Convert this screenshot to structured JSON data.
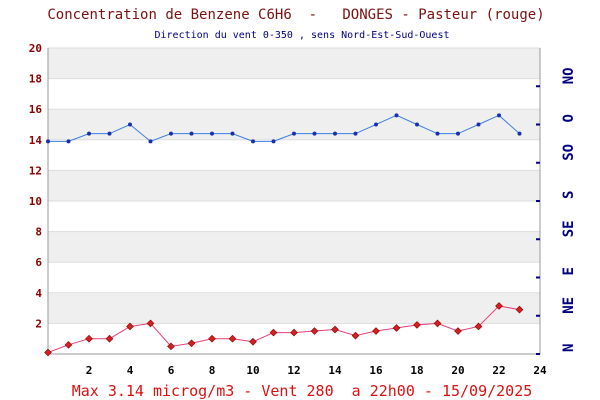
{
  "chart_data": {
    "type": "line",
    "title": "Concentration de Benzene C6H6  -   DONGES - Pasteur (rouge)",
    "subtitle": "Direction du vent 0-350 , sens Nord-Est-Sud-Ouest",
    "footer": "Max 3.14 microg/m3 - Vent 280  a 22h00 - 15/09/2025",
    "xlim": [
      0,
      24
    ],
    "ylim": [
      0,
      20
    ],
    "x_ticks": [
      "2",
      "4",
      "6",
      "8",
      "10",
      "12",
      "14",
      "16",
      "18",
      "20",
      "22",
      "24"
    ],
    "y_ticks": [
      "2",
      "4",
      "6",
      "8",
      "10",
      "12",
      "14",
      "16",
      "18",
      "20"
    ],
    "right_axis_labels": [
      "N",
      "NE",
      "E",
      "SE",
      "S",
      "SO",
      "O",
      "NO"
    ],
    "grid": true,
    "series": [
      {
        "role": "wind_direction",
        "color": "#3a7ee0",
        "marker_color": "#1a2fb0",
        "x": [
          0,
          1,
          2,
          3,
          4,
          5,
          6,
          7,
          8,
          9,
          10,
          11,
          12,
          13,
          14,
          15,
          16,
          17,
          18,
          19,
          20,
          21,
          22,
          23
        ],
        "values": [
          13.9,
          13.9,
          14.4,
          14.4,
          15.0,
          13.9,
          14.4,
          14.4,
          14.4,
          14.4,
          13.9,
          13.9,
          14.4,
          14.4,
          14.4,
          14.4,
          15.0,
          15.6,
          15.0,
          14.4,
          14.4,
          15.0,
          15.6,
          14.4
        ]
      },
      {
        "role": "benzene",
        "color": "#e0407a",
        "marker_color": "#d42020",
        "x": [
          0,
          1,
          2,
          3,
          4,
          5,
          6,
          7,
          8,
          9,
          10,
          11,
          12,
          13,
          14,
          15,
          16,
          17,
          18,
          19,
          20,
          21,
          22,
          23
        ],
        "values": [
          0.1,
          0.6,
          1.0,
          1.0,
          1.8,
          2.0,
          0.5,
          0.7,
          1.0,
          1.0,
          0.8,
          1.4,
          1.4,
          1.5,
          1.6,
          1.2,
          1.5,
          1.7,
          1.9,
          2.0,
          1.5,
          1.8,
          3.14,
          2.9
        ]
      }
    ]
  }
}
